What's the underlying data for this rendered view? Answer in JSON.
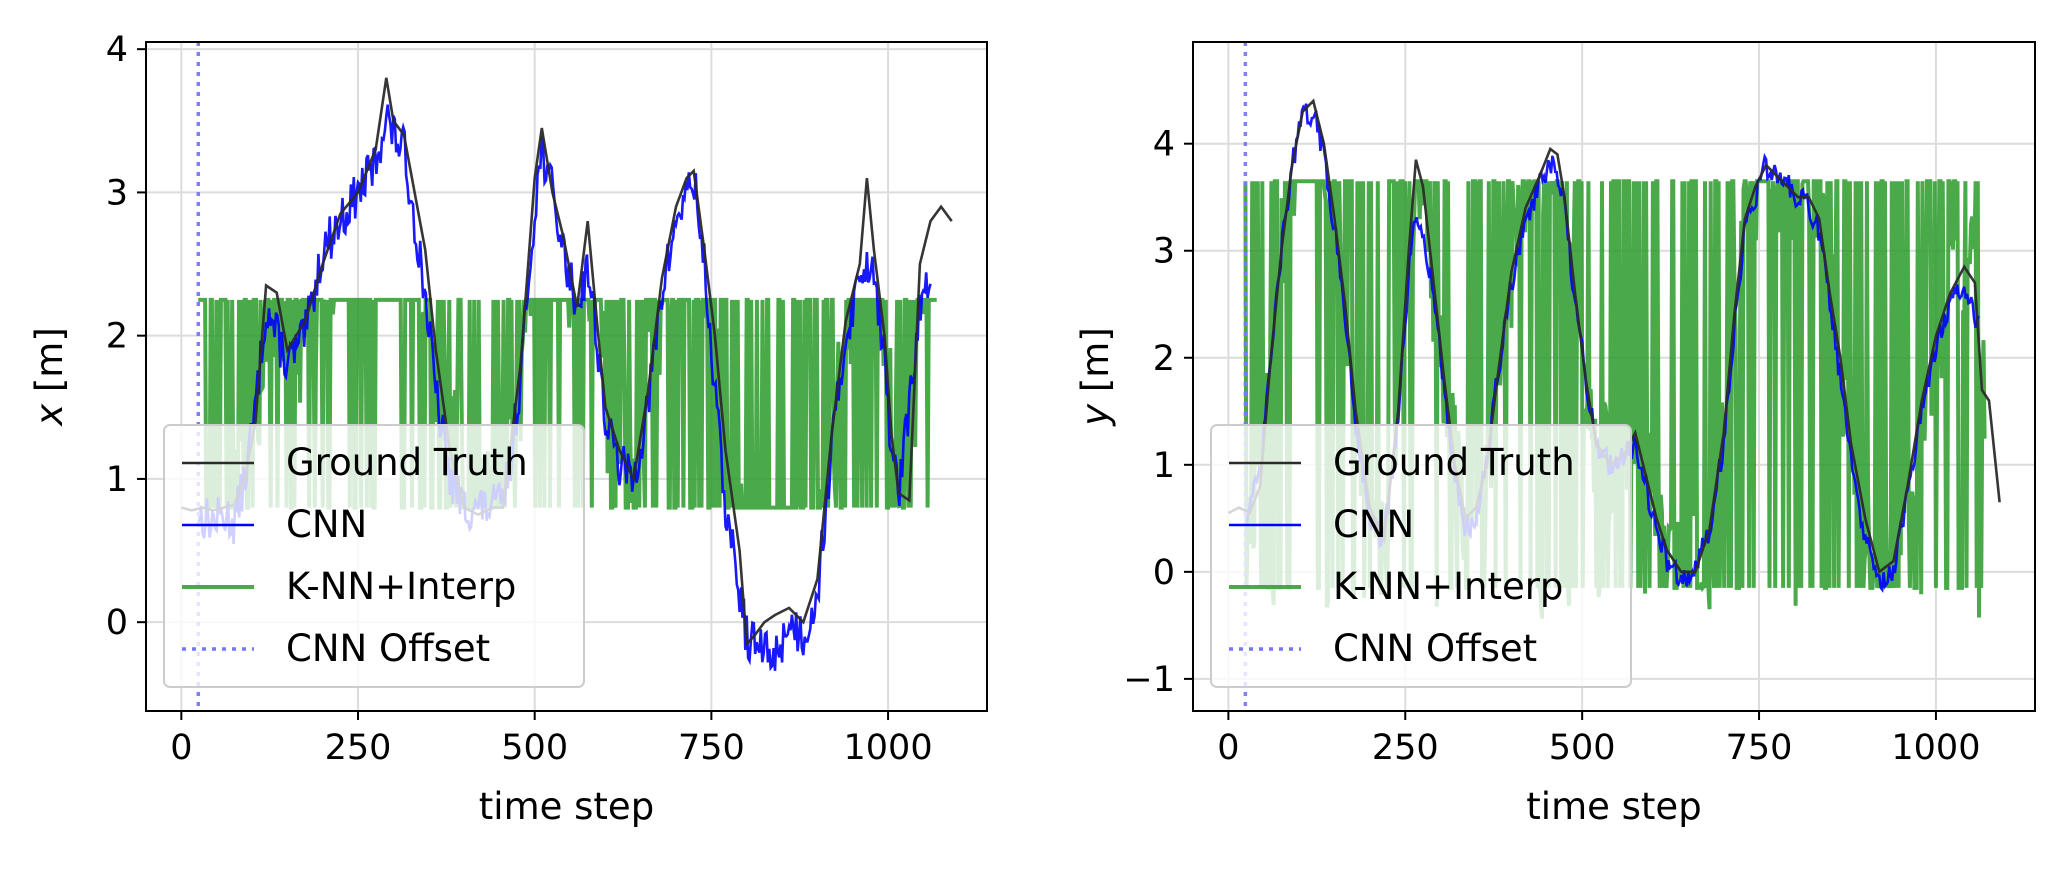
{
  "chart_data": [
    {
      "type": "line",
      "title": "",
      "xlabel": "time step",
      "ylabel": "x [m]",
      "ylabel_var": "x",
      "ylabel_unit": " [m]",
      "xlim": [
        -50,
        1140
      ],
      "ylim": [
        -0.62,
        4.05
      ],
      "xticks": [
        0,
        250,
        500,
        750,
        1000
      ],
      "yticks": [
        0,
        1,
        2,
        3,
        4
      ],
      "grid": true,
      "legend_position": "lower-left",
      "cnn_offset": 24,
      "series": [
        {
          "name": "Ground Truth",
          "color": "#2b2b2b",
          "kind": "line",
          "x": [
            0,
            15,
            30,
            45,
            60,
            75,
            90,
            105,
            120,
            135,
            150,
            175,
            200,
            225,
            250,
            275,
            290,
            300,
            315,
            330,
            345,
            360,
            380,
            400,
            420,
            440,
            455,
            465,
            480,
            500,
            510,
            525,
            540,
            560,
            575,
            590,
            600,
            620,
            640,
            660,
            680,
            700,
            715,
            725,
            740,
            755,
            770,
            790,
            800,
            810,
            825,
            840,
            860,
            880,
            900,
            920,
            940,
            960,
            970,
            980,
            995,
            1005,
            1015,
            1030,
            1045,
            1060,
            1075,
            1090
          ],
          "y": [
            0.8,
            0.78,
            0.8,
            0.78,
            0.8,
            0.82,
            1.0,
            1.4,
            2.35,
            2.3,
            1.9,
            2.1,
            2.5,
            2.85,
            3.0,
            3.3,
            3.8,
            3.5,
            3.4,
            3.0,
            2.6,
            1.9,
            1.2,
            0.8,
            0.75,
            0.8,
            0.8,
            1.2,
            1.8,
            3.1,
            3.45,
            3.0,
            2.7,
            2.2,
            2.8,
            2.0,
            1.5,
            1.2,
            1.0,
            1.6,
            2.4,
            2.9,
            3.1,
            3.15,
            2.6,
            2.0,
            1.2,
            0.5,
            -0.15,
            -0.1,
            0.0,
            0.05,
            0.1,
            0.0,
            0.3,
            1.3,
            2.1,
            2.5,
            3.1,
            2.6,
            2.0,
            1.3,
            0.9,
            0.85,
            2.5,
            2.8,
            2.9,
            2.8
          ]
        },
        {
          "name": "CNN",
          "color": "#0000ff",
          "kind": "noisy",
          "noise": 0.16,
          "x": [
            24,
            45,
            60,
            75,
            90,
            105,
            120,
            135,
            150,
            175,
            200,
            225,
            250,
            275,
            290,
            300,
            315,
            330,
            345,
            360,
            380,
            400,
            420,
            440,
            455,
            465,
            480,
            500,
            510,
            525,
            540,
            560,
            575,
            590,
            600,
            620,
            640,
            660,
            680,
            700,
            715,
            725,
            740,
            755,
            770,
            790,
            800,
            810,
            825,
            840,
            860,
            880,
            900,
            920,
            940,
            960,
            970,
            980,
            995,
            1005,
            1015,
            1030,
            1045,
            1060
          ],
          "y": [
            0.75,
            0.7,
            0.75,
            0.7,
            1.0,
            1.5,
            2.2,
            2.0,
            1.8,
            2.0,
            2.6,
            2.8,
            3.0,
            3.2,
            3.55,
            3.4,
            3.3,
            2.8,
            2.3,
            1.6,
            1.0,
            0.8,
            0.8,
            0.8,
            0.85,
            1.1,
            1.7,
            2.9,
            3.3,
            3.0,
            2.6,
            2.2,
            2.5,
            1.9,
            1.4,
            1.1,
            1.0,
            1.5,
            2.3,
            2.8,
            3.0,
            3.1,
            2.5,
            1.6,
            0.8,
            0.2,
            -0.1,
            -0.15,
            -0.2,
            -0.25,
            0.0,
            -0.1,
            0.2,
            1.2,
            2.0,
            2.4,
            2.5,
            2.5,
            1.8,
            1.2,
            0.9,
            1.5,
            2.2,
            2.4
          ]
        },
        {
          "name": "K-NN+Interp",
          "color": "#2a9b2a",
          "kind": "band",
          "x0": 24,
          "x1": 1070,
          "low": 0.8,
          "high": 2.25
        },
        {
          "name": "CNN Offset",
          "color": "#7777ff",
          "kind": "vline"
        }
      ]
    },
    {
      "type": "line",
      "title": "",
      "xlabel": "time step",
      "ylabel": "y [m]",
      "ylabel_var": "y",
      "ylabel_unit": " [m]",
      "xlim": [
        -50,
        1140
      ],
      "ylim": [
        -1.3,
        4.95
      ],
      "xticks": [
        0,
        250,
        500,
        750,
        1000
      ],
      "yticks": [
        -1,
        0,
        1,
        2,
        3,
        4
      ],
      "grid": true,
      "legend_position": "lower-left",
      "cnn_offset": 24,
      "series": [
        {
          "name": "Ground Truth",
          "color": "#2b2b2b",
          "kind": "line",
          "x": [
            0,
            15,
            30,
            45,
            60,
            75,
            90,
            105,
            120,
            135,
            150,
            165,
            180,
            200,
            220,
            240,
            255,
            265,
            275,
            290,
            305,
            320,
            335,
            350,
            365,
            380,
            400,
            420,
            440,
            455,
            465,
            475,
            490,
            505,
            520,
            540,
            560,
            575,
            590,
            605,
            620,
            640,
            660,
            680,
            700,
            715,
            730,
            745,
            760,
            775,
            790,
            805,
            820,
            835,
            850,
            865,
            880,
            900,
            920,
            940,
            960,
            980,
            1000,
            1020,
            1040,
            1055,
            1065,
            1075,
            1090
          ],
          "y": [
            0.55,
            0.6,
            0.55,
            0.8,
            2.0,
            3.0,
            3.8,
            4.3,
            4.4,
            4.0,
            3.3,
            2.5,
            1.5,
            0.6,
            0.3,
            1.5,
            3.0,
            3.85,
            3.6,
            2.7,
            1.8,
            1.0,
            0.5,
            0.6,
            1.0,
            1.8,
            2.8,
            3.4,
            3.7,
            3.95,
            3.9,
            3.5,
            2.6,
            1.8,
            1.2,
            1.0,
            1.1,
            1.3,
            0.9,
            0.5,
            0.2,
            0.0,
            0.0,
            0.4,
            1.3,
            2.4,
            3.3,
            3.6,
            3.8,
            3.7,
            3.6,
            3.5,
            3.5,
            3.3,
            2.6,
            2.0,
            1.2,
            0.5,
            0.0,
            0.1,
            0.8,
            1.6,
            2.2,
            2.6,
            2.85,
            2.7,
            1.7,
            1.6,
            0.65
          ]
        },
        {
          "name": "CNN",
          "color": "#0000ff",
          "kind": "noisy",
          "noise": 0.12,
          "x": [
            24,
            45,
            60,
            75,
            90,
            105,
            120,
            135,
            150,
            165,
            180,
            200,
            220,
            240,
            255,
            265,
            275,
            290,
            305,
            320,
            335,
            350,
            365,
            380,
            400,
            420,
            440,
            455,
            465,
            475,
            490,
            505,
            520,
            540,
            560,
            575,
            590,
            605,
            620,
            640,
            660,
            680,
            700,
            715,
            730,
            745,
            760,
            775,
            790,
            805,
            820,
            835,
            850,
            865,
            880,
            900,
            920,
            940,
            960,
            980,
            1000,
            1020,
            1040,
            1060
          ],
          "y": [
            0.5,
            0.9,
            2.0,
            3.0,
            3.8,
            4.25,
            4.3,
            3.9,
            3.2,
            2.4,
            1.4,
            0.5,
            0.3,
            1.4,
            2.8,
            3.3,
            3.2,
            2.6,
            1.7,
            0.9,
            0.4,
            0.5,
            1.0,
            1.8,
            2.7,
            3.3,
            3.6,
            3.8,
            3.7,
            3.4,
            2.5,
            1.8,
            1.2,
            1.0,
            1.1,
            1.2,
            0.8,
            0.4,
            0.1,
            -0.05,
            0.0,
            0.4,
            1.2,
            2.3,
            3.2,
            3.5,
            3.8,
            3.7,
            3.6,
            3.5,
            3.4,
            3.2,
            2.5,
            1.8,
            1.0,
            0.3,
            -0.1,
            0.0,
            0.7,
            1.5,
            2.1,
            2.5,
            2.7,
            2.3
          ]
        },
        {
          "name": "K-NN+Interp",
          "color": "#2a9b2a",
          "kind": "band",
          "x0": 24,
          "x1": 1070,
          "low": -0.15,
          "high": 3.65
        },
        {
          "name": "CNN Offset",
          "color": "#7777ff",
          "kind": "vline"
        }
      ]
    }
  ]
}
